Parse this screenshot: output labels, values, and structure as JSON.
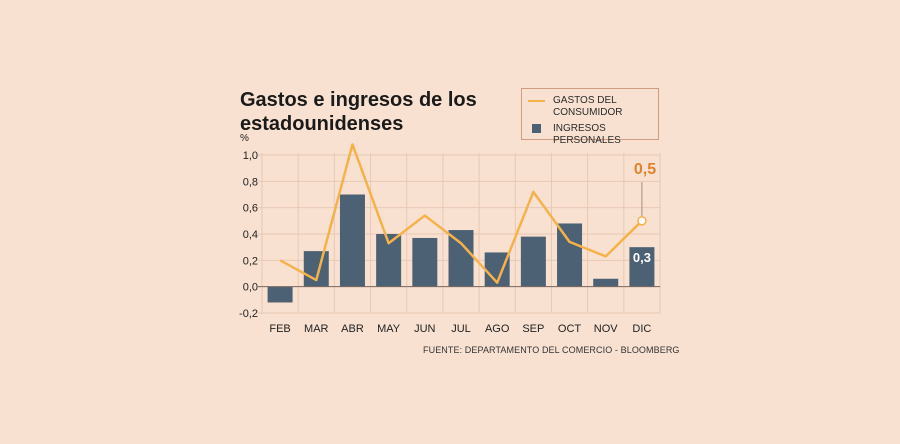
{
  "colors": {
    "background": "#f8e1d1",
    "bar": "#4d6174",
    "line": "#f5b24a",
    "grid": "#e8c8b4",
    "accent": "#e2812e"
  },
  "chart_data": {
    "type": "bar",
    "title": "Gastos e ingresos de los estadounidenses",
    "ylabel": "%",
    "ylim": [
      -0.2,
      1.0
    ],
    "yticks": [
      -0.2,
      0.0,
      0.2,
      0.4,
      0.6,
      0.8,
      1.0
    ],
    "ytick_labels": [
      "-0,2",
      "0,0",
      "0,2",
      "0,4",
      "0,6",
      "0,8",
      "1,0"
    ],
    "categories": [
      "FEB",
      "MAR",
      "ABR",
      "MAY",
      "JUN",
      "JUL",
      "AGO",
      "SEP",
      "OCT",
      "NOV",
      "DIC"
    ],
    "series": [
      {
        "name": "INGRESOS PERSONALES",
        "type": "bar",
        "values": [
          -0.12,
          0.27,
          0.7,
          0.4,
          0.37,
          0.43,
          0.26,
          0.38,
          0.48,
          0.06,
          0.3
        ]
      },
      {
        "name": "GASTOS DEL CONSUMIDOR",
        "type": "line",
        "values": [
          0.2,
          0.05,
          1.08,
          0.33,
          0.54,
          0.33,
          0.03,
          0.72,
          0.34,
          0.23,
          0.5
        ]
      }
    ],
    "annotations": {
      "last_line_value": "0,5",
      "last_bar_value": "0,3"
    },
    "grid": true,
    "source": "FUENTE: DEPARTAMENTO DEL COMERCIO - BLOOMBERG"
  }
}
